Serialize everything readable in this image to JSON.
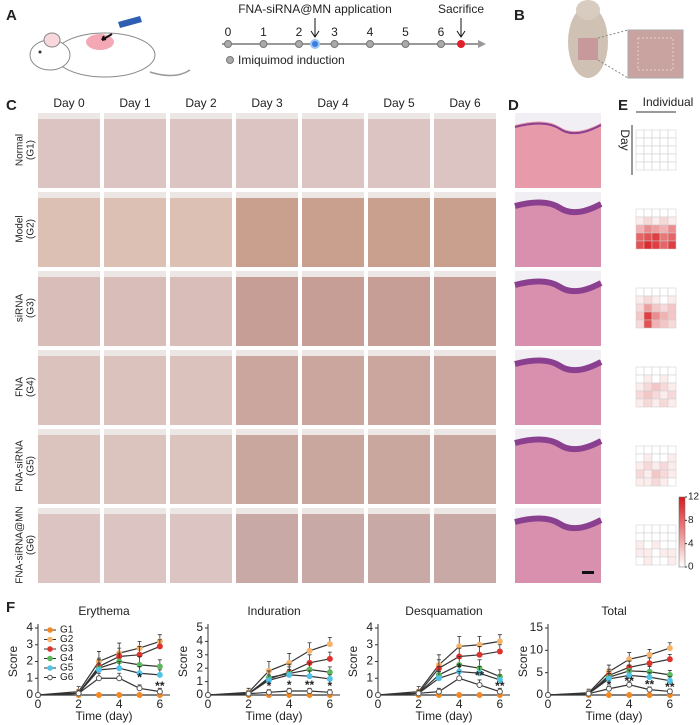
{
  "panel_labels": [
    "A",
    "B",
    "C",
    "D",
    "E",
    "F"
  ],
  "timeline": {
    "application_label": "FNA-siRNA@MN application",
    "sacrifice_label": "Sacrifice",
    "induction_label": "Imiquimod induction",
    "days": [
      0,
      1,
      2,
      3,
      4,
      5,
      6
    ]
  },
  "photo_grid": {
    "columns": [
      "Day 0",
      "Day 1",
      "Day 2",
      "Day 3",
      "Day 4",
      "Day 5",
      "Day 6"
    ],
    "rows": [
      [
        "Normal",
        "(G1)"
      ],
      [
        "Model",
        "(G2)"
      ],
      [
        "siRNA",
        "(G3)"
      ],
      [
        "FNA",
        "(G4)"
      ],
      [
        "FNA-siRNA",
        "(G5)"
      ],
      [
        "FNA-siRNA@MN",
        "(G6)"
      ]
    ]
  },
  "heatmap": {
    "axis_x": "Individual",
    "axis_y": "Day",
    "cmap": [
      "#ffffff",
      "#d7191c"
    ],
    "clim": [
      0,
      12
    ],
    "cticks": [
      0,
      4,
      8,
      12
    ],
    "groups": [
      [
        [
          0,
          0,
          0,
          0,
          0
        ],
        [
          0,
          0,
          0,
          0,
          0
        ],
        [
          0,
          0,
          0,
          0,
          0
        ],
        [
          0,
          0,
          0,
          0,
          0
        ],
        [
          0,
          0,
          0,
          0,
          0
        ]
      ],
      [
        [
          0,
          0,
          0,
          0,
          0
        ],
        [
          1,
          2,
          1,
          2,
          1
        ],
        [
          4,
          6,
          5,
          4,
          6
        ],
        [
          8,
          9,
          10,
          7,
          8
        ],
        [
          9,
          11,
          10,
          8,
          10
        ]
      ],
      [
        [
          0,
          0,
          0,
          0,
          0
        ],
        [
          1,
          2,
          1,
          0,
          1
        ],
        [
          2,
          5,
          3,
          2,
          3
        ],
        [
          3,
          10,
          6,
          4,
          3
        ],
        [
          2,
          9,
          4,
          3,
          2
        ]
      ],
      [
        [
          0,
          0,
          0,
          0,
          0
        ],
        [
          0,
          1,
          0,
          1,
          0
        ],
        [
          1,
          2,
          3,
          2,
          1
        ],
        [
          2,
          3,
          2,
          1,
          2
        ],
        [
          1,
          2,
          1,
          2,
          1
        ]
      ],
      [
        [
          0,
          0,
          0,
          0,
          0
        ],
        [
          0,
          1,
          0,
          0,
          1
        ],
        [
          1,
          2,
          1,
          2,
          1
        ],
        [
          2,
          1,
          3,
          2,
          1
        ],
        [
          1,
          1,
          2,
          1,
          0
        ]
      ],
      [
        [
          0,
          0,
          0,
          0,
          0
        ],
        [
          0,
          0,
          0,
          0,
          0
        ],
        [
          1,
          0,
          1,
          0,
          0
        ],
        [
          1,
          1,
          0,
          1,
          1
        ],
        [
          0,
          1,
          0,
          0,
          1
        ]
      ]
    ]
  },
  "chart_data": [
    {
      "type": "line",
      "title": "Erythema",
      "xlabel": "Time (day)",
      "ylabel": "Score",
      "x": [
        0,
        2,
        3,
        4,
        5,
        6
      ],
      "xlim": [
        0,
        6.5
      ],
      "xticks": [
        0,
        2,
        4,
        6
      ],
      "ylim": [
        0,
        4
      ],
      "yticks": [
        0,
        1,
        2,
        3,
        4
      ],
      "legend": "upper left",
      "series": [
        {
          "name": "G1",
          "color": "#f5871f",
          "marker": "filled",
          "values": [
            0,
            0,
            0,
            0,
            0,
            0
          ],
          "errors": [
            0,
            0,
            0,
            0,
            0,
            0
          ]
        },
        {
          "name": "G2",
          "color": "#f7b26a",
          "marker": "filled",
          "values": [
            0,
            0.2,
            2.0,
            2.5,
            2.8,
            3.2
          ],
          "errors": [
            0,
            0.3,
            0.6,
            0.6,
            0.4,
            0.4
          ]
        },
        {
          "name": "G3",
          "color": "#e0312a",
          "marker": "filled",
          "values": [
            0,
            0.1,
            1.7,
            2.3,
            2.4,
            2.9
          ],
          "errors": [
            0,
            0.2,
            0.5,
            0.5,
            0.5,
            0.4
          ]
        },
        {
          "name": "G4",
          "color": "#5cb85c",
          "marker": "filled",
          "values": [
            0,
            0.1,
            1.6,
            2.0,
            1.8,
            1.7
          ],
          "errors": [
            0,
            0.2,
            0.5,
            0.5,
            0.5,
            0.4
          ]
        },
        {
          "name": "G5",
          "color": "#4fc3e8",
          "marker": "filled",
          "values": [
            0,
            0.1,
            1.5,
            1.6,
            1.3,
            1.2
          ],
          "errors": [
            0,
            0.2,
            0.4,
            0.4,
            0.4,
            0.3
          ]
        },
        {
          "name": "G6",
          "color": "#555555",
          "marker": "open",
          "values": [
            0,
            0.1,
            1.0,
            1.0,
            0.4,
            0.2
          ],
          "errors": [
            0,
            0.2,
            0.3,
            0.3,
            0.2,
            0.2
          ]
        }
      ],
      "annotations": [
        {
          "text": "*",
          "x": 5,
          "y": 1.0
        },
        {
          "text": "**",
          "x": 6,
          "y": 0.5
        }
      ]
    },
    {
      "type": "line",
      "title": "Induration",
      "xlabel": "Time (day)",
      "ylabel": "Score",
      "x": [
        0,
        2,
        3,
        4,
        5,
        6
      ],
      "xlim": [
        0,
        6.5
      ],
      "xticks": [
        0,
        2,
        4,
        6
      ],
      "ylim": [
        0,
        5
      ],
      "yticks": [
        0,
        1,
        2,
        3,
        4,
        5
      ],
      "series": [
        {
          "color": "#f5871f",
          "marker": "filled",
          "values": [
            0,
            0,
            0,
            0,
            0,
            0
          ],
          "errors": [
            0,
            0,
            0,
            0,
            0,
            0
          ]
        },
        {
          "color": "#f7b26a",
          "marker": "filled",
          "values": [
            0,
            0.2,
            1.8,
            2.4,
            3.3,
            3.8
          ],
          "errors": [
            0,
            0.3,
            0.7,
            0.7,
            0.6,
            0.5
          ]
        },
        {
          "color": "#e0312a",
          "marker": "filled",
          "values": [
            0,
            0.1,
            1.2,
            1.7,
            2.4,
            2.7
          ],
          "errors": [
            0,
            0.2,
            0.6,
            0.6,
            0.6,
            0.5
          ]
        },
        {
          "color": "#5cb85c",
          "marker": "filled",
          "values": [
            0,
            0.1,
            1.3,
            1.6,
            1.9,
            1.7
          ],
          "errors": [
            0,
            0.2,
            0.5,
            0.5,
            0.5,
            0.4
          ]
        },
        {
          "color": "#4fc3e8",
          "marker": "filled",
          "values": [
            0,
            0.1,
            1.1,
            1.5,
            1.4,
            1.2
          ],
          "errors": [
            0,
            0.2,
            0.4,
            0.4,
            0.4,
            0.3
          ]
        },
        {
          "color": "#555555",
          "marker": "open",
          "values": [
            0,
            0.1,
            0.2,
            0.3,
            0.3,
            0.2
          ],
          "errors": [
            0,
            0.2,
            0.2,
            0.2,
            0.2,
            0.2
          ]
        }
      ],
      "annotations": [
        {
          "text": "*",
          "x": 3,
          "y": 0.6
        },
        {
          "text": "*",
          "x": 4,
          "y": 0.7
        },
        {
          "text": "**",
          "x": 5,
          "y": 0.7
        },
        {
          "text": "*",
          "x": 6,
          "y": 0.6
        }
      ]
    },
    {
      "type": "line",
      "title": "Desquamation",
      "xlabel": "Time (day)",
      "ylabel": "Score",
      "x": [
        0,
        2,
        3,
        4,
        5,
        6
      ],
      "xlim": [
        0,
        6.5
      ],
      "xticks": [
        0,
        2,
        4,
        6
      ],
      "ylim": [
        0,
        4
      ],
      "yticks": [
        0,
        1,
        2,
        3,
        4
      ],
      "series": [
        {
          "color": "#f5871f",
          "marker": "filled",
          "values": [
            0,
            0,
            0,
            0,
            0,
            0
          ],
          "errors": [
            0,
            0,
            0,
            0,
            0,
            0
          ]
        },
        {
          "color": "#f7b26a",
          "marker": "filled",
          "values": [
            0,
            0.2,
            1.8,
            2.9,
            3.0,
            3.2
          ],
          "errors": [
            0,
            0.3,
            0.6,
            0.6,
            0.5,
            0.4
          ]
        },
        {
          "color": "#e0312a",
          "marker": "filled",
          "values": [
            0,
            0.1,
            1.6,
            2.3,
            2.4,
            2.6
          ],
          "errors": [
            0,
            0.2,
            0.5,
            0.5,
            0.5,
            0.4
          ]
        },
        {
          "color": "#5cb85c",
          "marker": "filled",
          "values": [
            0,
            0.1,
            1.2,
            1.8,
            1.6,
            1.1
          ],
          "errors": [
            0,
            0.2,
            0.5,
            0.5,
            0.5,
            0.4
          ]
        },
        {
          "color": "#4fc3e8",
          "marker": "filled",
          "values": [
            0,
            0.1,
            1.0,
            1.4,
            1.3,
            0.9
          ],
          "errors": [
            0,
            0.2,
            0.4,
            0.4,
            0.4,
            0.3
          ]
        },
        {
          "color": "#555555",
          "marker": "open",
          "values": [
            0,
            0.1,
            0.2,
            1.0,
            0.6,
            0.2
          ],
          "errors": [
            0,
            0.2,
            0.2,
            0.4,
            0.3,
            0.2
          ]
        }
      ],
      "annotations": [
        {
          "text": "*",
          "x": 4,
          "y": 1.6
        },
        {
          "text": "**",
          "x": 5,
          "y": 1.1
        },
        {
          "text": "**",
          "x": 6,
          "y": 0.5
        }
      ]
    },
    {
      "type": "line",
      "title": "Total",
      "xlabel": "Time (day)",
      "ylabel": "Score",
      "x": [
        0,
        2,
        3,
        4,
        5,
        6
      ],
      "xlim": [
        0,
        6.5
      ],
      "xticks": [
        0,
        2,
        4,
        6
      ],
      "ylim": [
        0,
        15
      ],
      "yticks": [
        0,
        5,
        10,
        15
      ],
      "series": [
        {
          "color": "#f5871f",
          "marker": "filled",
          "values": [
            0,
            0,
            0,
            0,
            0,
            0
          ],
          "errors": [
            0,
            0,
            0,
            0,
            0,
            0
          ]
        },
        {
          "color": "#f7b26a",
          "marker": "filled",
          "values": [
            0,
            0.5,
            5.2,
            8,
            9,
            10.5
          ],
          "errors": [
            0,
            0.8,
            1.5,
            1.5,
            1.2,
            1.2
          ]
        },
        {
          "color": "#e0312a",
          "marker": "filled",
          "values": [
            0,
            0.3,
            4.4,
            6.2,
            7.1,
            8
          ],
          "errors": [
            0,
            0.6,
            1.4,
            1.4,
            1.2,
            1.1
          ]
        },
        {
          "color": "#5cb85c",
          "marker": "filled",
          "values": [
            0,
            0.3,
            4,
            5.4,
            5.2,
            4.5
          ],
          "errors": [
            0,
            0.6,
            1.3,
            1.3,
            1.2,
            1.0
          ]
        },
        {
          "color": "#4fc3e8",
          "marker": "filled",
          "values": [
            0,
            0.3,
            3.6,
            4.4,
            4,
            3.2
          ],
          "errors": [
            0,
            0.5,
            1.2,
            1.2,
            1.0,
            0.9
          ]
        },
        {
          "color": "#555555",
          "marker": "open",
          "values": [
            0,
            0.3,
            1.4,
            2.3,
            1.2,
            0.8
          ],
          "errors": [
            0,
            0.4,
            0.6,
            0.8,
            0.6,
            0.5
          ]
        }
      ],
      "annotations": [
        {
          "text": "*",
          "x": 3,
          "y": 2.0
        },
        {
          "text": "**",
          "x": 4,
          "y": 3.0
        },
        {
          "text": "**",
          "x": 5,
          "y": 2.2
        },
        {
          "text": "**",
          "x": 6,
          "y": 1.6
        }
      ]
    }
  ]
}
